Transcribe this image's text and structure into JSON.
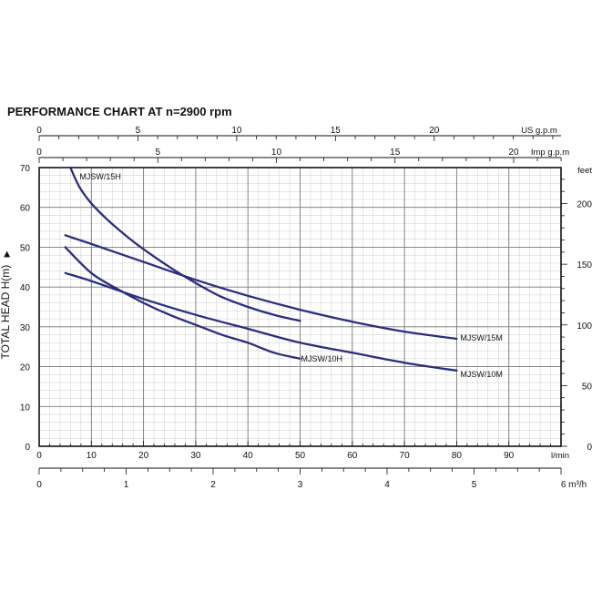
{
  "chart_data": {
    "type": "line",
    "title": "PERFORMANCE CHART AT n=2900 rpm",
    "ylabel": "TOTAL HEAD H(m)",
    "ylabel_arrow": "▶",
    "xlabel": "",
    "xlim": [
      0,
      100
    ],
    "ylim": [
      0,
      70
    ],
    "grid": true,
    "x_ticks": [
      0,
      10,
      20,
      30,
      40,
      50,
      60,
      70,
      80,
      90
    ],
    "x_unit": "l/min",
    "y_ticks": [
      0,
      10,
      20,
      30,
      40,
      50,
      60,
      70
    ],
    "secondary_axes": {
      "us_gpm": {
        "unit": "US g.p.m",
        "ticks": [
          0,
          5,
          10,
          15,
          20
        ]
      },
      "imp_gpm": {
        "unit": "Imp g.p.m",
        "ticks": [
          0,
          5,
          10,
          15,
          20
        ]
      },
      "feet": {
        "unit": "feet",
        "ticks": [
          0,
          50,
          100,
          150,
          200
        ]
      },
      "m3h": {
        "unit": "m³/h",
        "ticks": [
          0,
          1,
          2,
          3,
          4,
          5,
          6
        ]
      }
    },
    "series": [
      {
        "name": "MJSW/15H",
        "color": "#2a2e7a",
        "x": [
          6,
          7,
          8,
          10,
          13,
          17,
          20,
          25,
          30,
          35,
          40,
          45,
          50
        ],
        "y": [
          70,
          67,
          64.5,
          61,
          57,
          52.5,
          49.5,
          45,
          41,
          37.5,
          35,
          33,
          31.5
        ]
      },
      {
        "name": "MJSW/15M",
        "color": "#2a2e7a",
        "x": [
          5,
          10,
          20,
          30,
          40,
          50,
          60,
          70,
          80
        ],
        "y": [
          53,
          50.8,
          46.3,
          41.8,
          37.8,
          34.3,
          31.3,
          28.8,
          27
        ]
      },
      {
        "name": "MJSW/10H",
        "color": "#2a2e7a",
        "x": [
          5,
          10,
          15,
          20,
          25,
          30,
          35,
          40,
          45,
          50
        ],
        "y": [
          50,
          43.5,
          39.5,
          36,
          33,
          30.5,
          28,
          26,
          23.5,
          22
        ]
      },
      {
        "name": "MJSW/10M",
        "color": "#2a2e7a",
        "x": [
          5,
          10,
          20,
          30,
          40,
          50,
          60,
          70,
          80
        ],
        "y": [
          43.5,
          41.5,
          37,
          33,
          29.5,
          26,
          23.5,
          21,
          19
        ]
      }
    ]
  }
}
